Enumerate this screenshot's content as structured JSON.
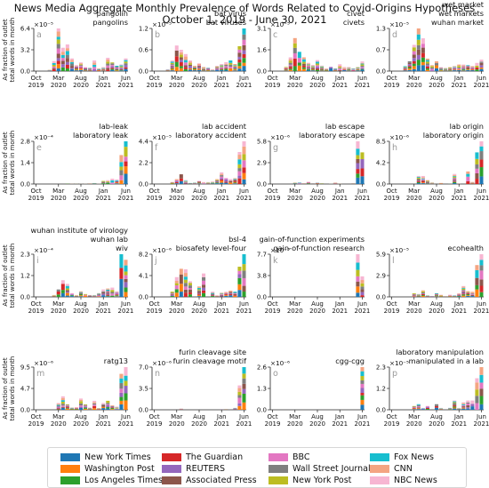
{
  "figure": {
    "title_line1": "News Media Aggregate Monthly Prevalence of Words Related to Covid-Origins Hypotheses",
    "title_line2": "October 1, 2019 - June 30, 2021"
  },
  "legend": [
    {
      "name": "New York Times",
      "color": "#1f77b4"
    },
    {
      "name": "Washington Post",
      "color": "#ff7f0e"
    },
    {
      "name": "Los Angeles Times",
      "color": "#2ca02c"
    },
    {
      "name": "The Guardian",
      "color": "#d62728"
    },
    {
      "name": "REUTERS",
      "color": "#9467bd"
    },
    {
      "name": "Associated Press",
      "color": "#8c564b"
    },
    {
      "name": "BBC",
      "color": "#e377c2"
    },
    {
      "name": "Wall Street Journal",
      "color": "#7f7f7f"
    },
    {
      "name": "New York Post",
      "color": "#bcbd22"
    },
    {
      "name": "Fox News",
      "color": "#17becf"
    },
    {
      "name": "CNN",
      "color": "#f4a582"
    },
    {
      "name": "NBC News",
      "color": "#f7b6d2"
    }
  ],
  "chart_data": {
    "type": "bar",
    "stacked": true,
    "months": [
      "2019-10",
      "2019-11",
      "2019-12",
      "2020-01",
      "2020-02",
      "2020-03",
      "2020-04",
      "2020-05",
      "2020-06",
      "2020-07",
      "2020-08",
      "2020-09",
      "2020-10",
      "2020-11",
      "2020-12",
      "2021-01",
      "2021-02",
      "2021-03",
      "2021-04",
      "2021-05",
      "2021-06"
    ],
    "x_tick_labels": [
      [
        "Oct",
        "2019"
      ],
      [
        "Mar",
        "2020"
      ],
      [
        "Aug",
        "2020"
      ],
      [
        "Jan",
        "2021"
      ],
      [
        "Jun",
        "2021"
      ]
    ],
    "ylabel": "As fraction of outlet total words in month",
    "panels": [
      {
        "letter": "a",
        "title": [
          "pangolin",
          "pangolins"
        ],
        "exponent": "×10⁻⁵",
        "ymax": 6.4,
        "ticks": [
          "0.0",
          "3.2",
          "6.4"
        ],
        "totals": [
          0,
          0,
          0,
          0.2,
          1.5,
          6.5,
          3.5,
          4.0,
          1.9,
          0.9,
          1.3,
          0.6,
          0.5,
          1.6,
          0.4,
          0.6,
          2.0,
          1.3,
          0.8,
          1.0,
          1.9
        ]
      },
      {
        "letter": "b",
        "title": [
          "bat virus",
          "bat viruses"
        ],
        "exponent": "×10⁻⁵",
        "ymax": 1.2,
        "ticks": [
          "0.0",
          "0.6",
          "1.2"
        ],
        "totals": [
          0,
          0,
          0,
          0.05,
          0.3,
          0.72,
          0.6,
          0.48,
          0.3,
          0.15,
          0.22,
          0.12,
          0.1,
          0.05,
          0.15,
          0.2,
          0.25,
          0.3,
          0.2,
          0.7,
          1.2
        ]
      },
      {
        "letter": "c",
        "title": [
          "civet",
          "civets"
        ],
        "exponent": "×10⁻⁵",
        "ymax": 3.1,
        "ticks": [
          "0.0",
          "1.6",
          "3.1"
        ],
        "totals": [
          0,
          0,
          0,
          0.3,
          1.0,
          2.4,
          1.4,
          1.0,
          0.6,
          0.45,
          0.8,
          0.4,
          0.2,
          0.3,
          0.2,
          0.5,
          0.3,
          0.3,
          0.2,
          0.3,
          0.7
        ]
      },
      {
        "letter": "d",
        "title": [
          "wet market",
          "wet markets",
          "wuhan market"
        ],
        "exponent": "×10⁻⁵",
        "ymax": 1.3,
        "ticks": [
          "0.0",
          "0.7",
          "1.3"
        ],
        "totals": [
          0,
          0,
          0,
          0.15,
          0.3,
          0.8,
          1.3,
          1.0,
          0.38,
          0.18,
          0.3,
          0.12,
          0.1,
          0.12,
          0.15,
          0.2,
          0.2,
          0.18,
          0.15,
          0.25,
          0.35
        ]
      },
      {
        "letter": "e",
        "title": [
          "lab-leak",
          "laboratory leak"
        ],
        "exponent": "×10⁻⁴",
        "ymax": 2.8,
        "ticks": [
          "0.0",
          "1.4",
          "2.8"
        ],
        "totals": [
          0,
          0,
          0,
          0,
          0,
          0,
          0,
          0.04,
          0.03,
          0.02,
          0.03,
          0.03,
          0.04,
          0.06,
          0.02,
          0.2,
          0.25,
          0.35,
          0.3,
          1.9,
          2.8
        ]
      },
      {
        "letter": "f",
        "title": [
          "lab accident",
          "laboratory accident"
        ],
        "exponent": "×10⁻⁵",
        "ymax": 4.4,
        "ticks": [
          "0.0",
          "2.2",
          "4.4"
        ],
        "totals": [
          0,
          0,
          0,
          0,
          0.2,
          0.5,
          1.0,
          0.4,
          0.1,
          0.15,
          0.3,
          0.2,
          0.2,
          0.25,
          0.5,
          1.2,
          0.6,
          0.5,
          0.6,
          3.3,
          4.4
        ]
      },
      {
        "letter": "g",
        "title": [
          "lab escape",
          "laboratory escape"
        ],
        "exponent": "×10⁻⁶",
        "ymax": 5.8,
        "ticks": [
          "0.0",
          "2.9",
          "5.8"
        ],
        "totals": [
          0,
          0,
          0,
          0,
          0,
          0.2,
          0.2,
          0.1,
          0.3,
          0.1,
          0.2,
          0.1,
          0,
          0.05,
          0.2,
          0.05,
          0,
          0,
          0.1,
          5.8,
          4.3
        ]
      },
      {
        "letter": "h",
        "title": [
          "lab origin",
          "laboratory origin"
        ],
        "exponent": "×10⁻⁶",
        "ymax": 8.5,
        "ticks": [
          "0.0",
          "4.2",
          "8.5"
        ],
        "totals": [
          0,
          0,
          0,
          0,
          0,
          0,
          1.6,
          1.6,
          0.8,
          0.3,
          0,
          0.2,
          0,
          0.1,
          2.0,
          0.1,
          0,
          2.5,
          0.4,
          6.3,
          8.5
        ]
      },
      {
        "letter": "i",
        "title": [
          "wuhan institute of virology",
          "wuhan lab",
          "wiv"
        ],
        "exponent": "×10⁻⁴",
        "ymax": 2.3,
        "ticks": [
          "0.0",
          "1.2",
          "2.3"
        ],
        "totals": [
          0,
          0,
          0,
          0,
          0.1,
          0.4,
          0.9,
          0.7,
          0.2,
          0.1,
          0.3,
          0.15,
          0.1,
          0.1,
          0.2,
          0.4,
          0.45,
          0.5,
          0.3,
          2.3,
          2.0
        ]
      },
      {
        "letter": "j",
        "title": [
          "bsl-4",
          "biosafety level-four"
        ],
        "exponent": "×10⁻⁶",
        "ymax": 8.2,
        "ticks": [
          "0.0",
          "4.1",
          "8.2"
        ],
        "totals": [
          0,
          0,
          0,
          0,
          1.0,
          3.8,
          5.4,
          5.3,
          3.0,
          0,
          2.0,
          4.5,
          0,
          1.0,
          0.3,
          0.8,
          1.0,
          1.2,
          1.0,
          5.8,
          8.2
        ]
      },
      {
        "letter": "k",
        "title": [
          "gain-of-function experiments",
          "gain-of-function research"
        ],
        "exponent": "×10⁻⁵",
        "ymax": 7.7,
        "ticks": [
          "0.0",
          "3.8",
          "7.7"
        ],
        "totals": [
          0,
          0,
          0,
          0,
          0,
          0,
          0,
          0,
          0,
          0,
          0,
          0,
          0,
          0,
          0,
          0,
          0,
          0,
          0,
          7.7,
          3.7
        ]
      },
      {
        "letter": "l",
        "title": [
          "ecohealth"
        ],
        "exponent": "×10⁻⁵",
        "ymax": 5.9,
        "ticks": [
          "0.0",
          "2.9",
          "5.9"
        ],
        "totals": [
          0,
          0,
          0,
          0,
          0,
          0.5,
          0.4,
          0.9,
          0.2,
          0.1,
          0.5,
          0.3,
          0.1,
          0.3,
          0.2,
          0.5,
          1.5,
          0.8,
          0.7,
          4.4,
          5.9
        ]
      },
      {
        "letter": "m",
        "title": [
          "ratg13"
        ],
        "exponent": "×10⁻⁶",
        "ymax": 9.5,
        "ticks": [
          "0.0",
          "4.7",
          "9.5"
        ],
        "totals": [
          0,
          0,
          0,
          0,
          0,
          1.5,
          3.0,
          1.2,
          0.5,
          0.6,
          2.5,
          1.2,
          0.5,
          2.0,
          0.4,
          1.5,
          2.0,
          1.0,
          0.7,
          8.0,
          9.5
        ]
      },
      {
        "letter": "n",
        "title": [
          "furin cleavage site",
          "furin cleavage motif"
        ],
        "exponent": "×10⁻⁶",
        "ymax": 7.0,
        "ticks": [
          "0.0",
          "3.5",
          "7.0"
        ],
        "totals": [
          0,
          0,
          0,
          0,
          0,
          0,
          0.2,
          0,
          0,
          0,
          0,
          0,
          0,
          0,
          0,
          0.1,
          0.1,
          0,
          0.3,
          4.0,
          7.0
        ]
      },
      {
        "letter": "o",
        "title": [
          "cgg-cgg"
        ],
        "exponent": "×10⁻⁶",
        "ymax": 2.6,
        "ticks": [
          "0.0",
          "1.3",
          "2.6"
        ],
        "totals": [
          0,
          0,
          0,
          0,
          0,
          0,
          0,
          0,
          0,
          0,
          0,
          0,
          0,
          0,
          0,
          0,
          0,
          0,
          0,
          0,
          2.6
        ]
      },
      {
        "letter": "p",
        "title": [
          "laboratory manipulation",
          "manipulated in a lab"
        ],
        "exponent": "×10⁻⁵",
        "ymax": 2.3,
        "ticks": [
          "0.0",
          "1.2",
          "2.3"
        ],
        "totals": [
          0,
          0,
          0,
          0,
          0,
          0.2,
          0.3,
          0.1,
          0.2,
          0,
          0.3,
          0.1,
          0,
          0.1,
          0.5,
          0.1,
          0.4,
          0.5,
          0.5,
          1.7,
          2.3
        ]
      }
    ]
  }
}
